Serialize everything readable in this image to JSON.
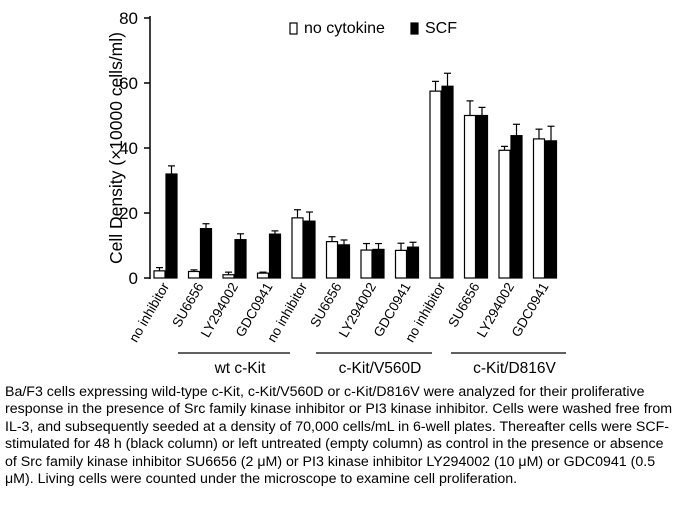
{
  "chart_data": {
    "type": "bar",
    "ylabel": "Cell Density (×10000 cells/ml)",
    "ylim": [
      0,
      80
    ],
    "yticks": [
      0,
      20,
      40,
      60,
      80
    ],
    "legend": {
      "placement": "top-right",
      "entries": [
        "no cytokine",
        "SCF"
      ]
    },
    "groups": [
      {
        "label": "wt c-Kit",
        "categories": [
          "no inhibitor",
          "SU6656",
          "LY294002",
          "GDC0941"
        ]
      },
      {
        "label": "c-Kit/V560D",
        "categories": [
          "no inhibitor",
          "SU6656",
          "LY294002",
          "GDC0941"
        ]
      },
      {
        "label": "c-Kit/D816V",
        "categories": [
          "no inhibitor",
          "SU6656",
          "LY294002",
          "GDC0941"
        ]
      }
    ],
    "series": [
      {
        "name": "no cytokine",
        "color": "#ffffff",
        "values": [
          2.2,
          2.0,
          1.0,
          1.5,
          18.5,
          11.2,
          8.6,
          8.5,
          57.5,
          50.0,
          39.3,
          42.8
        ],
        "errors": [
          1.0,
          0.5,
          0.8,
          0.3,
          2.5,
          1.5,
          2.0,
          2.2,
          3.0,
          4.5,
          1.2,
          3.0
        ]
      },
      {
        "name": "SCF",
        "color": "#000000",
        "values": [
          32.0,
          15.2,
          11.8,
          13.5,
          17.5,
          10.2,
          8.8,
          9.5,
          59.0,
          50.0,
          43.8,
          42.2
        ],
        "errors": [
          2.5,
          1.5,
          1.8,
          1.0,
          2.8,
          1.5,
          1.8,
          1.5,
          4.0,
          2.5,
          3.5,
          4.5
        ]
      }
    ]
  },
  "caption": "Ba/F3 cells expressing wild-type c-Kit, c-Kit/V560D or c-Kit/D816V were analyzed for their proliferative response in the presence of Src family kinase inhibitor or PI3 kinase inhibitor. Cells were washed free from IL-3, and subsequently seeded at a density of 70,000 cells/mL in 6-well plates. Thereafter cells were SCF-stimulated for 48 h (black column) or left untreated (empty column) as control in the presence or absence of Src family kinase inhibitor SU6656 (2 μM) or PI3 kinase inhibitor LY294002 (10 μM) or GDC0941 (0.5 μM). Living cells were counted under the microscope to examine cell proliferation."
}
